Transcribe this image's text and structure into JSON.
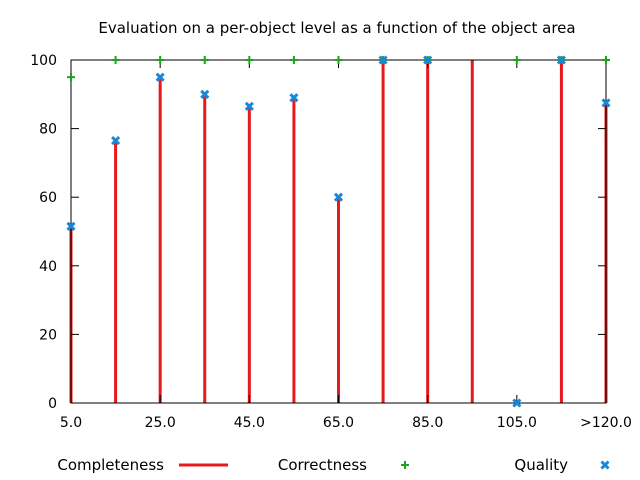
{
  "chart_data": {
    "type": "bar",
    "title": "Evaluation on a per-object level as a function of the object area",
    "xlabel": "",
    "ylabel": "",
    "x_range": [
      5,
      125
    ],
    "x_ticks": [
      {
        "value": 5,
        "label": "5.0"
      },
      {
        "value": 25,
        "label": "25.0"
      },
      {
        "value": 45,
        "label": "45.0"
      },
      {
        "value": 65,
        "label": "65.0"
      },
      {
        "value": 85,
        "label": "85.0"
      },
      {
        "value": 105,
        "label": "105.0"
      },
      {
        "value": 125,
        "label": ">120.0"
      }
    ],
    "ylim": [
      0,
      100
    ],
    "y_ticks": [
      0,
      20,
      40,
      60,
      80,
      100
    ],
    "grid": false,
    "legend_position": "bottom",
    "x": [
      5,
      15,
      25,
      35,
      45,
      55,
      65,
      75,
      85,
      95,
      105,
      115,
      125
    ],
    "series": [
      {
        "name": "Completeness",
        "style": "impulse",
        "color": "#e41a1c",
        "values": [
          51.5,
          76.5,
          95,
          90,
          86.5,
          89,
          60,
          100,
          100,
          100,
          0,
          100,
          87.5
        ]
      },
      {
        "name": "Correctness",
        "style": "plus",
        "color": "#1fa31f",
        "values": [
          95,
          100,
          100,
          100,
          100,
          100,
          100,
          100,
          100,
          null,
          100,
          100,
          100
        ]
      },
      {
        "name": "Quality",
        "style": "cross",
        "color": "#1c86d6",
        "values": [
          51.5,
          76.5,
          95,
          90,
          86.5,
          89,
          60,
          100,
          100,
          null,
          0,
          100,
          87.5
        ]
      }
    ]
  }
}
